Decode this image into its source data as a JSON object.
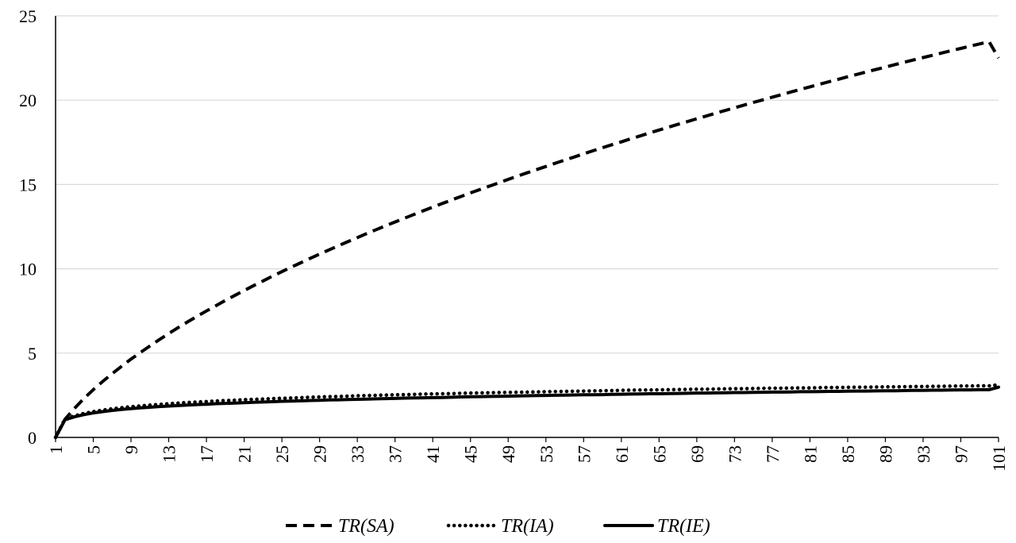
{
  "chart_data": {
    "type": "line",
    "x": [
      1,
      2,
      3,
      4,
      5,
      6,
      7,
      8,
      9,
      10,
      11,
      12,
      13,
      14,
      15,
      16,
      17,
      18,
      19,
      20,
      21,
      22,
      23,
      24,
      25,
      26,
      27,
      28,
      29,
      30,
      31,
      32,
      33,
      34,
      35,
      36,
      37,
      38,
      39,
      40,
      41,
      42,
      43,
      44,
      45,
      46,
      47,
      48,
      49,
      50,
      51,
      52,
      53,
      54,
      55,
      56,
      57,
      58,
      59,
      60,
      61,
      62,
      63,
      64,
      65,
      66,
      67,
      68,
      69,
      70,
      71,
      72,
      73,
      74,
      75,
      76,
      77,
      78,
      79,
      80,
      81,
      82,
      83,
      84,
      85,
      86,
      87,
      88,
      89,
      90,
      91,
      92,
      93,
      94,
      95,
      96,
      97,
      98,
      99,
      100,
      101
    ],
    "xticks": [
      "1",
      "5",
      "9",
      "13",
      "17",
      "21",
      "25",
      "29",
      "33",
      "37",
      "41",
      "45",
      "49",
      "53",
      "57",
      "61",
      "65",
      "69",
      "73",
      "77",
      "81",
      "85",
      "89",
      "93",
      "97",
      "101"
    ],
    "ylim": [
      0,
      25
    ],
    "yticks": [
      "0",
      "5",
      "10",
      "15",
      "20",
      "25"
    ],
    "grid": true,
    "legend_position": "bottom",
    "title": "",
    "xlabel": "",
    "ylabel": "",
    "series": [
      {
        "name": "TR(SA)",
        "style": "dashed",
        "values": [
          0.0,
          1.08,
          1.72,
          2.3,
          2.83,
          3.32,
          3.78,
          4.22,
          4.64,
          5.04,
          5.42,
          5.8,
          6.16,
          6.51,
          6.85,
          7.18,
          7.5,
          7.81,
          8.12,
          8.42,
          8.71,
          9.0,
          9.28,
          9.56,
          9.83,
          10.1,
          10.36,
          10.62,
          10.87,
          11.12,
          11.37,
          11.61,
          11.85,
          12.09,
          12.32,
          12.55,
          12.78,
          13.0,
          13.22,
          13.44,
          13.66,
          13.87,
          14.08,
          14.29,
          14.5,
          14.7,
          14.9,
          15.1,
          15.3,
          15.5,
          15.69,
          15.88,
          16.07,
          16.26,
          16.45,
          16.63,
          16.82,
          17.0,
          17.18,
          17.36,
          17.53,
          17.71,
          17.88,
          18.06,
          18.23,
          18.4,
          18.57,
          18.73,
          18.9,
          19.06,
          19.23,
          19.39,
          19.55,
          19.71,
          19.87,
          20.02,
          20.18,
          20.33,
          20.49,
          20.64,
          20.79,
          20.94,
          21.09,
          21.24,
          21.39,
          21.53,
          21.68,
          21.82,
          21.96,
          22.11,
          22.25,
          22.39,
          22.53,
          22.66,
          22.8,
          22.94,
          23.07,
          23.21,
          23.34,
          23.47,
          22.5
        ]
      },
      {
        "name": "TR(IA)",
        "style": "dotted",
        "values": [
          0.0,
          1.1,
          1.28,
          1.42,
          1.53,
          1.62,
          1.7,
          1.76,
          1.82,
          1.87,
          1.92,
          1.96,
          2.0,
          2.04,
          2.07,
          2.1,
          2.13,
          2.16,
          2.19,
          2.21,
          2.24,
          2.26,
          2.28,
          2.3,
          2.32,
          2.34,
          2.36,
          2.38,
          2.4,
          2.42,
          2.43,
          2.45,
          2.47,
          2.48,
          2.5,
          2.51,
          2.53,
          2.54,
          2.55,
          2.57,
          2.58,
          2.59,
          2.6,
          2.62,
          2.63,
          2.64,
          2.65,
          2.66,
          2.67,
          2.68,
          2.69,
          2.7,
          2.71,
          2.72,
          2.73,
          2.74,
          2.75,
          2.76,
          2.77,
          2.78,
          2.79,
          2.8,
          2.81,
          2.81,
          2.82,
          2.83,
          2.84,
          2.85,
          2.86,
          2.86,
          2.87,
          2.88,
          2.89,
          2.89,
          2.9,
          2.91,
          2.92,
          2.92,
          2.93,
          2.94,
          2.94,
          2.95,
          2.96,
          2.96,
          2.97,
          2.98,
          2.98,
          2.99,
          3.0,
          3.0,
          3.01,
          3.02,
          3.02,
          3.03,
          3.03,
          3.04,
          3.05,
          3.05,
          3.06,
          3.06,
          3.12
        ]
      },
      {
        "name": "TR(IE)",
        "style": "solid",
        "values": [
          0.0,
          1.05,
          1.22,
          1.35,
          1.45,
          1.53,
          1.6,
          1.66,
          1.71,
          1.75,
          1.79,
          1.83,
          1.86,
          1.89,
          1.92,
          1.95,
          1.97,
          2.0,
          2.02,
          2.04,
          2.06,
          2.08,
          2.1,
          2.12,
          2.14,
          2.15,
          2.17,
          2.19,
          2.2,
          2.22,
          2.23,
          2.25,
          2.26,
          2.27,
          2.29,
          2.3,
          2.31,
          2.33,
          2.34,
          2.35,
          2.36,
          2.37,
          2.38,
          2.4,
          2.41,
          2.42,
          2.43,
          2.44,
          2.45,
          2.46,
          2.47,
          2.48,
          2.49,
          2.5,
          2.51,
          2.52,
          2.53,
          2.53,
          2.54,
          2.55,
          2.56,
          2.57,
          2.58,
          2.59,
          2.59,
          2.6,
          2.61,
          2.62,
          2.63,
          2.63,
          2.64,
          2.65,
          2.66,
          2.66,
          2.67,
          2.68,
          2.69,
          2.69,
          2.7,
          2.71,
          2.71,
          2.72,
          2.73,
          2.73,
          2.74,
          2.75,
          2.75,
          2.76,
          2.77,
          2.77,
          2.78,
          2.79,
          2.79,
          2.8,
          2.8,
          2.81,
          2.82,
          2.82,
          2.83,
          2.83,
          2.98
        ]
      }
    ]
  }
}
